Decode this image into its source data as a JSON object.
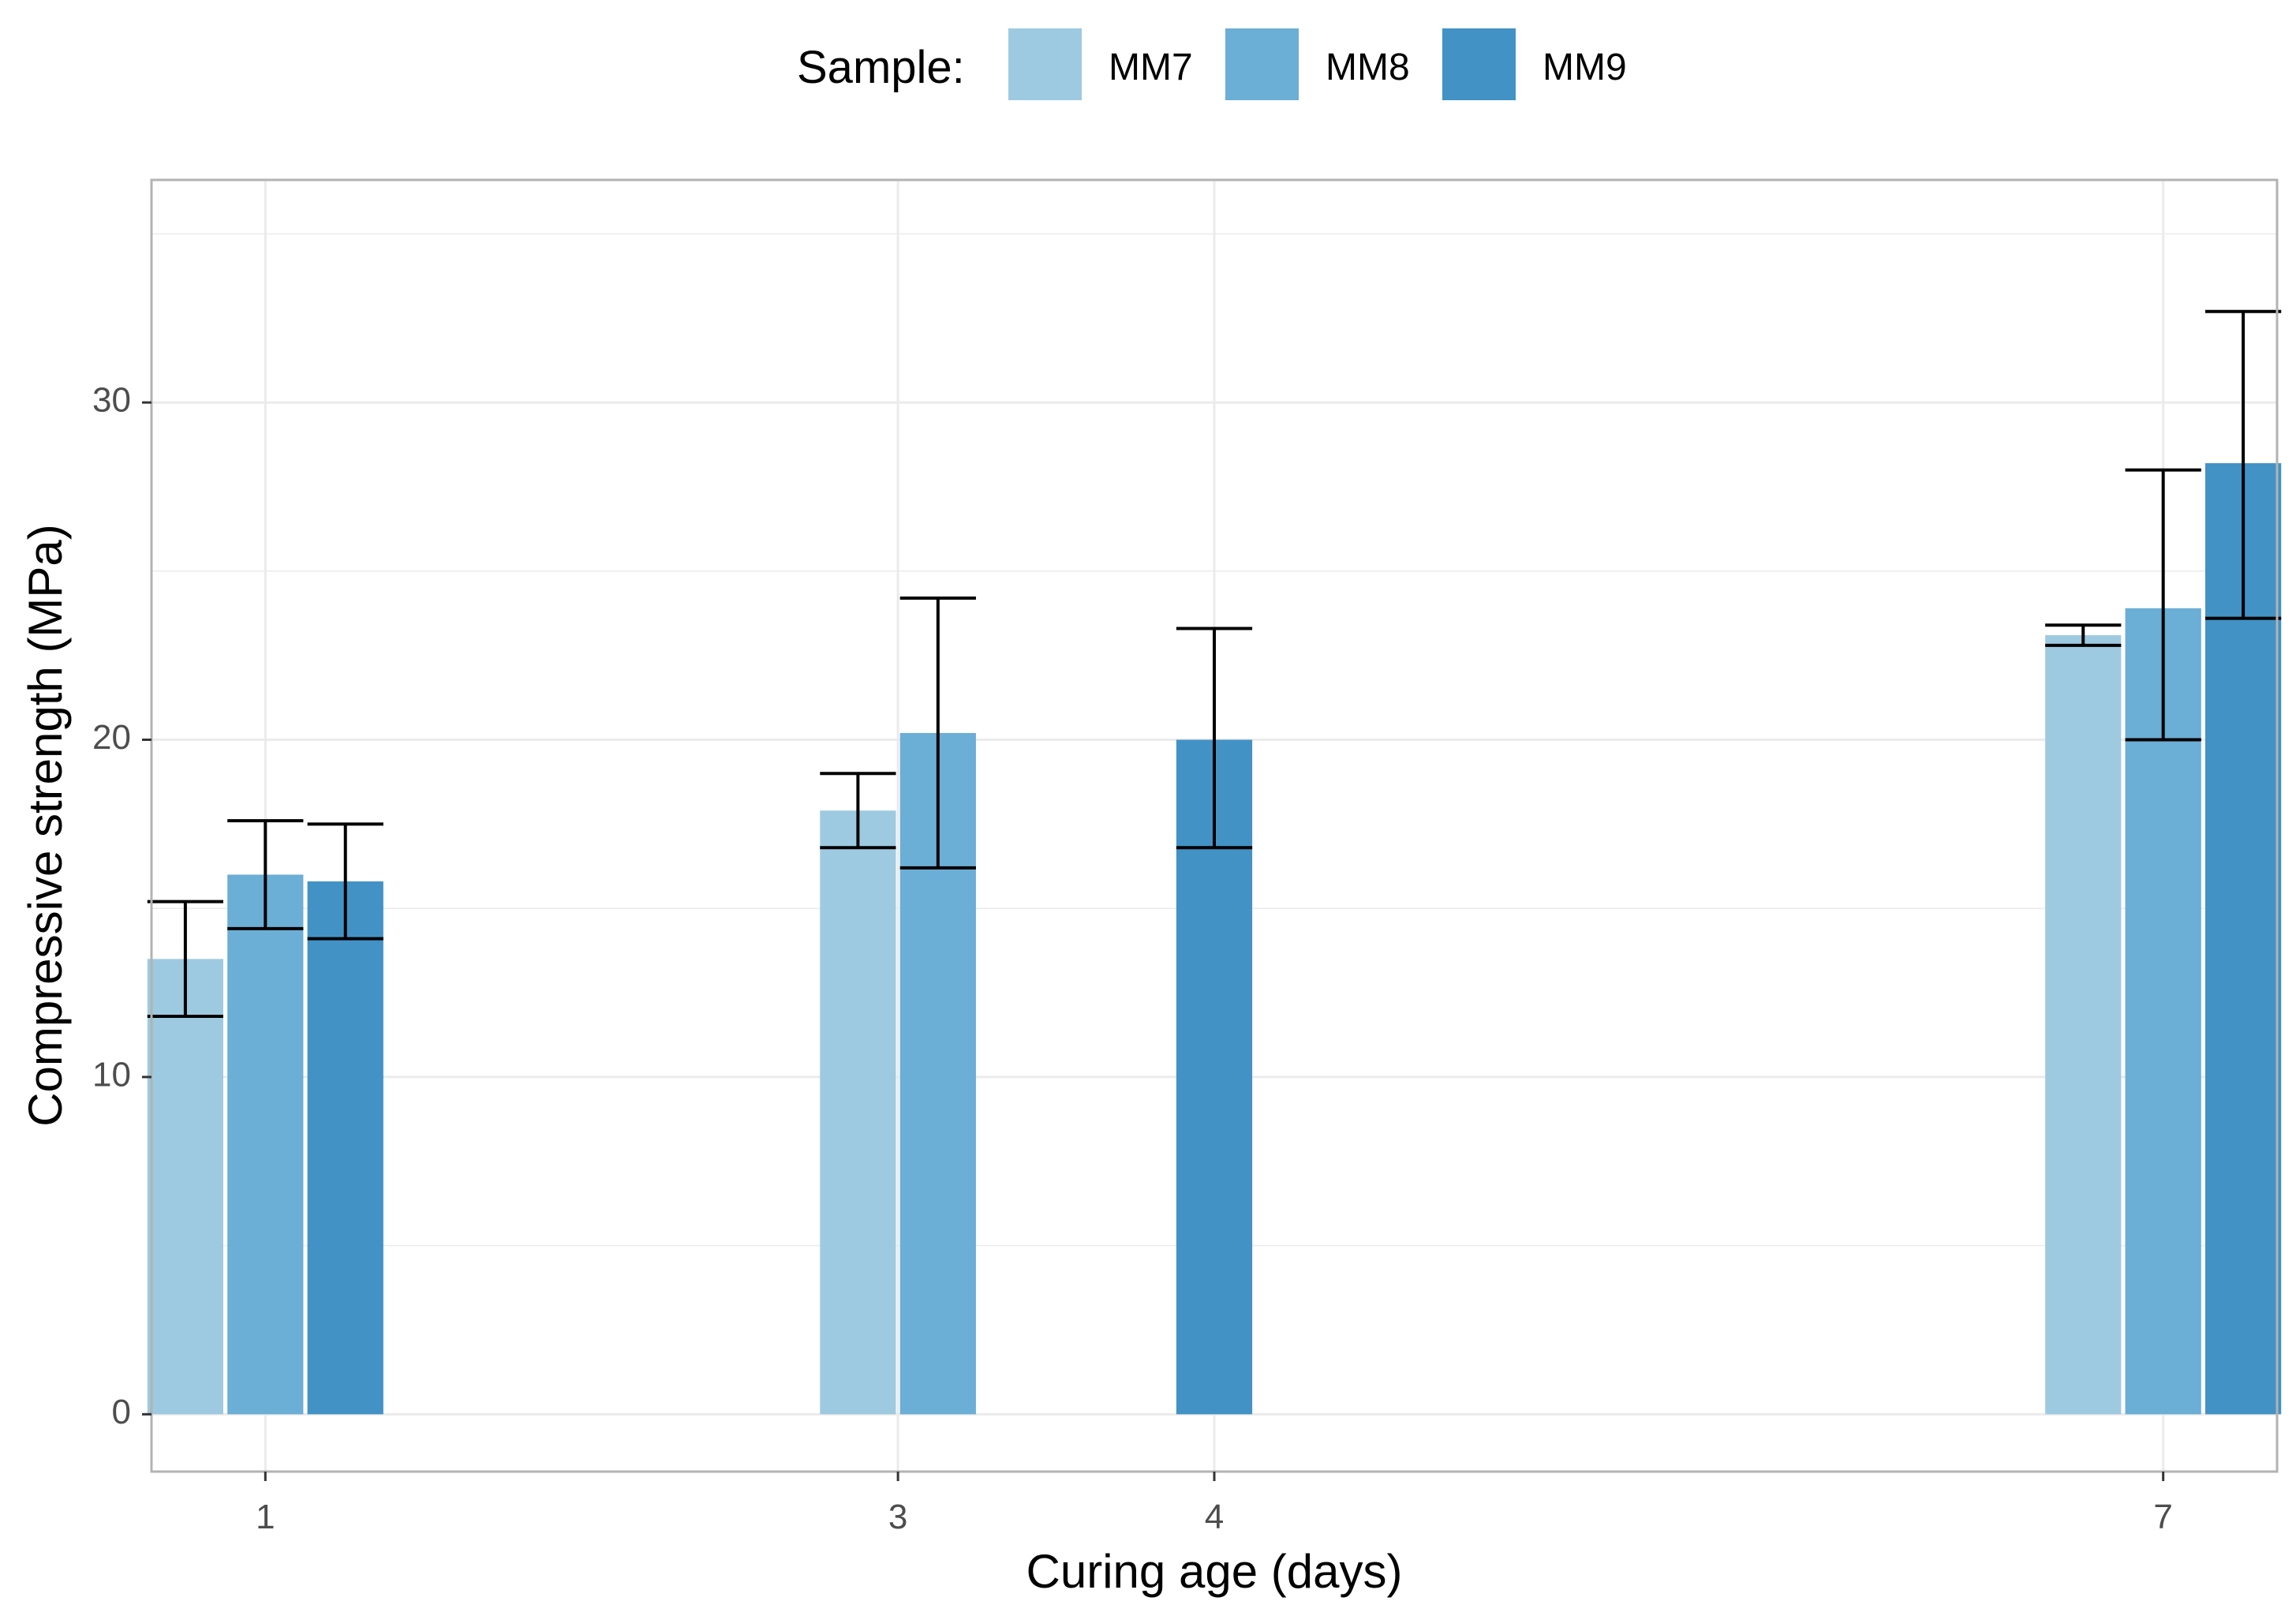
{
  "chart_data": {
    "type": "bar",
    "title": "",
    "xlabel": "Curing age (days)",
    "ylabel": "Compressive strength (MPa)",
    "legend_title": "Sample:",
    "legend_position": "top",
    "grid": true,
    "x_ticks": [
      "1",
      "3",
      "4",
      "7"
    ],
    "y_ticks": [
      "0",
      "10",
      "20",
      "30"
    ],
    "xlim": [
      0.64,
      7.36
    ],
    "ylim": [
      -1.7,
      36.6
    ],
    "bar_width_days": 0.24,
    "series": [
      {
        "name": "MM7",
        "color": "#9ecae1",
        "points": [
          {
            "x": 1,
            "y": 13.5,
            "err_low": 11.8,
            "err_high": 15.2
          },
          {
            "x": 3,
            "y": 17.9,
            "err_low": 16.8,
            "err_high": 19.0
          },
          {
            "x": 7,
            "y": 23.1,
            "err_low": 22.8,
            "err_high": 23.4
          }
        ]
      },
      {
        "name": "MM8",
        "color": "#6baed6",
        "points": [
          {
            "x": 1,
            "y": 16.0,
            "err_low": 14.4,
            "err_high": 17.6
          },
          {
            "x": 3,
            "y": 20.2,
            "err_low": 16.2,
            "err_high": 24.2
          },
          {
            "x": 7,
            "y": 23.9,
            "err_low": 20.0,
            "err_high": 28.0
          }
        ]
      },
      {
        "name": "MM9",
        "color": "#4292c6",
        "points": [
          {
            "x": 1,
            "y": 15.8,
            "err_low": 14.1,
            "err_high": 17.5
          },
          {
            "x": 4,
            "y": 20.0,
            "err_low": 16.8,
            "err_high": 23.3
          },
          {
            "x": 7,
            "y": 28.2,
            "err_low": 23.6,
            "err_high": 32.7
          }
        ]
      }
    ]
  },
  "colors": {
    "grid": "#ebebeb",
    "panel_border": "#b3b3b3",
    "error_bar": "#000000"
  }
}
